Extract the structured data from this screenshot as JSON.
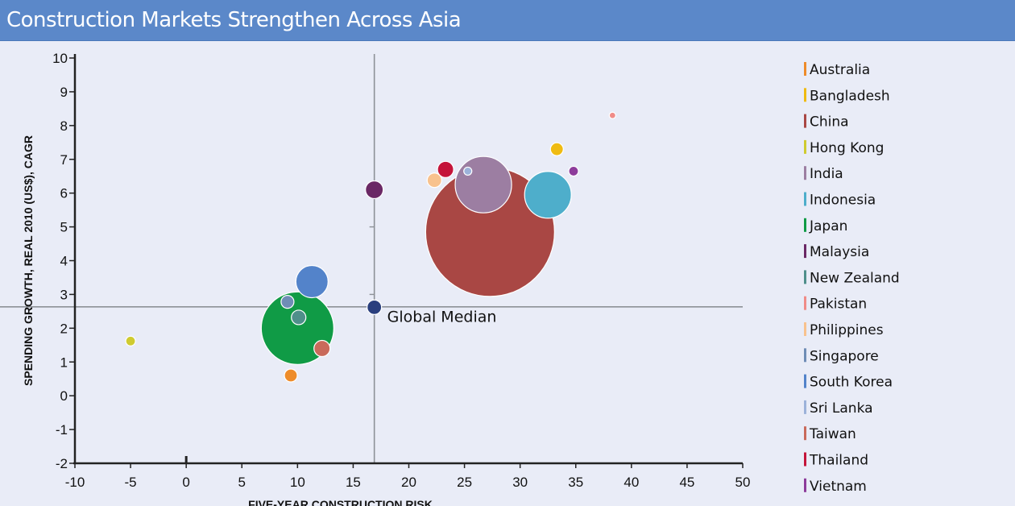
{
  "title": "Construction Markets Strengthen Across Asia",
  "chart_data": {
    "type": "scatter",
    "title": "Construction Markets Strengthen Across Asia",
    "xlabel": "FIVE-YEAR CONSTRUCTION RISK",
    "ylabel": "SPENDING GROWTH, REAL 2010 (US$), CAGR",
    "xlim": [
      -10,
      50
    ],
    "ylim": [
      -2,
      10
    ],
    "xticks": [
      -10,
      -5,
      0,
      5,
      10,
      15,
      20,
      25,
      30,
      35,
      40,
      45,
      50
    ],
    "yticks": [
      -2,
      -1,
      0,
      1,
      2,
      3,
      4,
      5,
      6,
      7,
      8,
      9,
      10
    ],
    "median": {
      "label": "Global Median",
      "x": 16.9,
      "y": 2.62,
      "color": "#2a3f7e"
    },
    "series": [
      {
        "name": "Australia",
        "x": 9.4,
        "y": 0.6,
        "size": 8,
        "color": "#ee8c2a"
      },
      {
        "name": "Bangladesh",
        "x": 33.3,
        "y": 7.3,
        "size": 8,
        "color": "#efbb12"
      },
      {
        "name": "China",
        "x": 27.3,
        "y": 4.85,
        "size": 80,
        "color": "#a94744"
      },
      {
        "name": "Hong Kong",
        "x": -5.0,
        "y": 1.62,
        "size": 6,
        "color": "#cfcb30"
      },
      {
        "name": "India",
        "x": 26.7,
        "y": 6.25,
        "size": 35,
        "color": "#9c7ea2"
      },
      {
        "name": "Indonesia",
        "x": 32.5,
        "y": 5.95,
        "size": 29,
        "color": "#4eaecb"
      },
      {
        "name": "Japan",
        "x": 10.0,
        "y": 2.0,
        "size": 45,
        "color": "#109b46"
      },
      {
        "name": "Malaysia",
        "x": 16.9,
        "y": 6.1,
        "size": 11,
        "color": "#6a2865"
      },
      {
        "name": "New Zealand",
        "x": 10.1,
        "y": 2.32,
        "size": 9,
        "color": "#4f8f8b"
      },
      {
        "name": "Pakistan",
        "x": 38.3,
        "y": 8.3,
        "size": 4,
        "color": "#f08c88"
      },
      {
        "name": "Philippines",
        "x": 22.3,
        "y": 6.38,
        "size": 9,
        "color": "#f8c28e"
      },
      {
        "name": "Singapore",
        "x": 9.1,
        "y": 2.78,
        "size": 8,
        "color": "#6f8db6"
      },
      {
        "name": "South Korea",
        "x": 11.3,
        "y": 3.38,
        "size": 20,
        "color": "#5383ca"
      },
      {
        "name": "Sri Lanka",
        "x": 25.3,
        "y": 6.65,
        "size": 5,
        "color": "#9cb2da"
      },
      {
        "name": "Taiwan",
        "x": 12.2,
        "y": 1.4,
        "size": 10,
        "color": "#c96a5b"
      },
      {
        "name": "Thailand",
        "x": 23.3,
        "y": 6.7,
        "size": 10,
        "color": "#c4143a"
      },
      {
        "name": "Vietnam",
        "x": 34.8,
        "y": 6.65,
        "size": 6,
        "color": "#8d3c9b"
      }
    ]
  }
}
